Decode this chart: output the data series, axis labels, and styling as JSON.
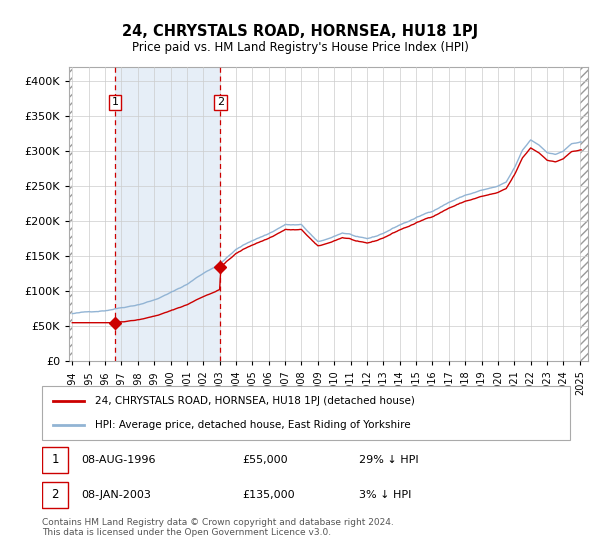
{
  "title": "24, CHRYSTALS ROAD, HORNSEA, HU18 1PJ",
  "subtitle": "Price paid vs. HM Land Registry's House Price Index (HPI)",
  "legend_line1": "24, CHRYSTALS ROAD, HORNSEA, HU18 1PJ (detached house)",
  "legend_line2": "HPI: Average price, detached house, East Riding of Yorkshire",
  "footnote": "Contains HM Land Registry data © Crown copyright and database right 2024.\nThis data is licensed under the Open Government Licence v3.0.",
  "transaction1_date": "08-AUG-1996",
  "transaction1_price": 55000,
  "transaction1_note": "29% ↓ HPI",
  "transaction1_x": 1996.6,
  "transaction1_y": 55000,
  "transaction2_date": "08-JAN-2003",
  "transaction2_price": 135000,
  "transaction2_note": "3% ↓ HPI",
  "transaction2_x": 2003.04,
  "transaction2_y": 135000,
  "hpi_color": "#92b4d4",
  "price_color": "#cc0000",
  "marker_color": "#cc0000",
  "vline_color": "#cc0000",
  "box_color": "#cc0000",
  "grid_color": "#cccccc",
  "bg_color": "#dce8f5",
  "highlight_color": "#dce8f5",
  "ylim": [
    0,
    420000
  ],
  "yticks": [
    0,
    50000,
    100000,
    150000,
    200000,
    250000,
    300000,
    350000,
    400000
  ],
  "xmin": 1993.8,
  "xmax": 2025.5,
  "xticks": [
    1994,
    1995,
    1996,
    1997,
    1998,
    1999,
    2000,
    2001,
    2002,
    2003,
    2004,
    2005,
    2006,
    2007,
    2008,
    2009,
    2010,
    2011,
    2012,
    2013,
    2014,
    2015,
    2016,
    2017,
    2018,
    2019,
    2020,
    2021,
    2022,
    2023,
    2024,
    2025
  ]
}
